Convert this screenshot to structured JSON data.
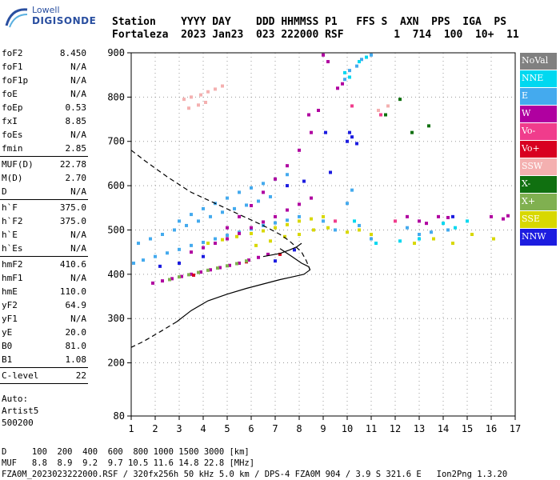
{
  "logo": {
    "top": "Lowell",
    "main": "DIGISONDE"
  },
  "header": {
    "line1": "Station    YYYY DAY    DDD HHMMSS P1   FFS S  AXN  PPS  IGA  PS",
    "line2": "Fortaleza  2023 Jan23  023 222000 RSF        1  714  100  10+  11"
  },
  "params": {
    "group1": [
      {
        "label": "foF2",
        "value": "8.450"
      },
      {
        "label": "foF1",
        "value": "N/A"
      },
      {
        "label": "foF1p",
        "value": "N/A"
      },
      {
        "label": "foE",
        "value": "N/A"
      },
      {
        "label": "foEp",
        "value": "0.53"
      },
      {
        "label": "fxI",
        "value": "8.85"
      },
      {
        "label": "foEs",
        "value": "N/A"
      },
      {
        "label": "fmin",
        "value": "2.85"
      }
    ],
    "group2": [
      {
        "label": "MUF(D)",
        "value": "22.78"
      },
      {
        "label": "M(D)",
        "value": "2.70"
      },
      {
        "label": "D",
        "value": "N/A"
      }
    ],
    "group3": [
      {
        "label": "h`F",
        "value": "375.0"
      },
      {
        "label": "h`F2",
        "value": "375.0"
      },
      {
        "label": "h`E",
        "value": "N/A"
      },
      {
        "label": "h`Es",
        "value": "N/A"
      }
    ],
    "group4": [
      {
        "label": "hmF2",
        "value": "410.6"
      },
      {
        "label": "hmF1",
        "value": "N/A"
      },
      {
        "label": "hmE",
        "value": "110.0"
      },
      {
        "label": "yF2",
        "value": "64.9"
      },
      {
        "label": "yF1",
        "value": "N/A"
      },
      {
        "label": "yE",
        "value": "20.0"
      },
      {
        "label": "B0",
        "value": "81.0"
      },
      {
        "label": "B1",
        "value": "1.08"
      }
    ],
    "group5": [
      {
        "label": "C-level",
        "value": "22"
      }
    ],
    "auto": [
      "Auto:",
      "Artist5",
      "500200"
    ]
  },
  "legend": [
    {
      "label": "NoVal",
      "color": "#808080"
    },
    {
      "label": "NNE",
      "color": "#00d8f0"
    },
    {
      "label": "E",
      "color": "#44aaee"
    },
    {
      "label": "W",
      "color": "#b000a0"
    },
    {
      "label": "Vo-",
      "color": "#f03c8c"
    },
    {
      "label": "Vo+",
      "color": "#d80020"
    },
    {
      "label": "SSW",
      "color": "#f4b0b0"
    },
    {
      "label": "X-",
      "color": "#107010"
    },
    {
      "label": "X+",
      "color": "#80b050"
    },
    {
      "label": "SSE",
      "color": "#d8d800"
    },
    {
      "label": "NNW",
      "color": "#1c1ce0"
    }
  ],
  "chart_data": {
    "type": "scatter",
    "xlim": [
      1,
      17
    ],
    "ylim": [
      80,
      900
    ],
    "xticks": [
      1,
      2,
      3,
      4,
      5,
      6,
      7,
      8,
      9,
      10,
      11,
      12,
      13,
      14,
      15,
      16,
      17
    ],
    "yticks": [
      80,
      200,
      300,
      400,
      500,
      600,
      700,
      800,
      900
    ],
    "grid": "dotted",
    "series": [
      {
        "name": "E",
        "color": "#44aaee",
        "points": [
          [
            1.1,
            425
          ],
          [
            1.5,
            432
          ],
          [
            2,
            440
          ],
          [
            2.5,
            448
          ],
          [
            3,
            456
          ],
          [
            3.5,
            465
          ],
          [
            4,
            472
          ],
          [
            4.5,
            480
          ],
          [
            5,
            488
          ],
          [
            5.5,
            495
          ],
          [
            6,
            502
          ],
          [
            6.5,
            510
          ],
          [
            7,
            516
          ],
          [
            7.5,
            522
          ],
          [
            8,
            530
          ],
          [
            1.3,
            470
          ],
          [
            1.8,
            480
          ],
          [
            2.3,
            490
          ],
          [
            2.8,
            500
          ],
          [
            3.3,
            510
          ],
          [
            3.8,
            520
          ],
          [
            4.3,
            530
          ],
          [
            4.8,
            540
          ],
          [
            5.3,
            548
          ],
          [
            5.8,
            556
          ],
          [
            6.3,
            565
          ],
          [
            6.8,
            575
          ],
          [
            3,
            520
          ],
          [
            3.5,
            535
          ],
          [
            4,
            548
          ],
          [
            4.5,
            560
          ],
          [
            5,
            572
          ],
          [
            5.5,
            585
          ],
          [
            6,
            595
          ],
          [
            6.5,
            605
          ],
          [
            7,
            615
          ],
          [
            7.5,
            625
          ],
          [
            9,
            520
          ],
          [
            9.5,
            500
          ],
          [
            10,
            560
          ],
          [
            10.2,
            590
          ],
          [
            10.5,
            510
          ],
          [
            11,
            480
          ],
          [
            12.5,
            505
          ],
          [
            13,
            490
          ],
          [
            13.5,
            495
          ],
          [
            14.2,
            500
          ],
          [
            10.1,
            860
          ],
          [
            10.4,
            870
          ],
          [
            10.6,
            885
          ],
          [
            11,
            895
          ],
          [
            9.9,
            840
          ]
        ]
      },
      {
        "name": "NNE",
        "color": "#00d8f0",
        "points": [
          [
            9.9,
            855
          ],
          [
            10.1,
            845
          ],
          [
            10.5,
            880
          ],
          [
            10.8,
            890
          ],
          [
            10.3,
            520
          ],
          [
            11.2,
            470
          ],
          [
            12.2,
            475
          ],
          [
            13,
            480
          ],
          [
            14,
            515
          ],
          [
            14.5,
            505
          ],
          [
            15,
            520
          ]
        ]
      },
      {
        "name": "W",
        "color": "#b000a0",
        "points": [
          [
            1.9,
            380
          ],
          [
            2.3,
            385
          ],
          [
            2.7,
            390
          ],
          [
            3.1,
            395
          ],
          [
            3.5,
            400
          ],
          [
            3.9,
            405
          ],
          [
            4.3,
            410
          ],
          [
            4.7,
            415
          ],
          [
            5.1,
            420
          ],
          [
            5.5,
            425
          ],
          [
            5.9,
            432
          ],
          [
            6.3,
            438
          ],
          [
            6.7,
            445
          ],
          [
            3.5,
            450
          ],
          [
            4,
            460
          ],
          [
            4.5,
            470
          ],
          [
            5,
            480
          ],
          [
            5.5,
            492
          ],
          [
            6,
            505
          ],
          [
            6.5,
            518
          ],
          [
            7,
            530
          ],
          [
            7.5,
            545
          ],
          [
            8,
            558
          ],
          [
            8.5,
            572
          ],
          [
            5,
            505
          ],
          [
            5.5,
            530
          ],
          [
            6,
            555
          ],
          [
            6.5,
            585
          ],
          [
            7,
            615
          ],
          [
            7.5,
            645
          ],
          [
            8,
            680
          ],
          [
            8.5,
            720
          ],
          [
            8.8,
            770
          ],
          [
            8.4,
            760
          ],
          [
            9,
            895
          ],
          [
            9.2,
            880
          ],
          [
            9.6,
            820
          ],
          [
            9.8,
            830
          ],
          [
            12.5,
            530
          ],
          [
            13,
            520
          ],
          [
            13.3,
            515
          ],
          [
            13.8,
            530
          ],
          [
            14.2,
            528
          ],
          [
            16,
            530
          ],
          [
            16.5,
            525
          ],
          [
            16.7,
            532
          ]
        ]
      },
      {
        "name": "Vo-",
        "color": "#f03c8c",
        "points": [
          [
            10.2,
            780
          ],
          [
            11.4,
            760
          ],
          [
            12,
            520
          ],
          [
            9.5,
            520
          ]
        ]
      },
      {
        "name": "Vo+",
        "color": "#d80020",
        "points": [
          [
            3.6,
            398
          ],
          [
            5.8,
            428
          ],
          [
            7.2,
            445
          ]
        ]
      },
      {
        "name": "SSW",
        "color": "#f4b0b0",
        "points": [
          [
            3.2,
            795
          ],
          [
            3.5,
            800
          ],
          [
            3.9,
            805
          ],
          [
            4.2,
            812
          ],
          [
            4.5,
            818
          ],
          [
            4.8,
            825
          ],
          [
            3.4,
            775
          ],
          [
            3.8,
            782
          ],
          [
            4.1,
            788
          ],
          [
            11.3,
            770
          ],
          [
            11.7,
            780
          ]
        ]
      },
      {
        "name": "X-",
        "color": "#107010",
        "points": [
          [
            12.2,
            795
          ],
          [
            12.7,
            720
          ],
          [
            11.6,
            760
          ],
          [
            13.4,
            735
          ]
        ]
      },
      {
        "name": "X+",
        "color": "#80b050",
        "points": [
          [
            2.6,
            388
          ],
          [
            3,
            394
          ],
          [
            3.4,
            399
          ],
          [
            3.8,
            404
          ],
          [
            4.2,
            409
          ],
          [
            4.6,
            414
          ],
          [
            5,
            419
          ],
          [
            5.4,
            424
          ],
          [
            5.8,
            430
          ]
        ]
      },
      {
        "name": "SSE",
        "color": "#d8d800",
        "points": [
          [
            4.2,
            470
          ],
          [
            4.8,
            478
          ],
          [
            5.4,
            485
          ],
          [
            6,
            492
          ],
          [
            6.5,
            498
          ],
          [
            7,
            505
          ],
          [
            7.5,
            512
          ],
          [
            8,
            520
          ],
          [
            8.5,
            525
          ],
          [
            9,
            530
          ],
          [
            6.2,
            465
          ],
          [
            6.8,
            475
          ],
          [
            7.4,
            485
          ],
          [
            8,
            490
          ],
          [
            8.6,
            500
          ],
          [
            9.2,
            505
          ],
          [
            10,
            495
          ],
          [
            10.5,
            500
          ],
          [
            11,
            490
          ],
          [
            12.8,
            470
          ],
          [
            13.6,
            480
          ],
          [
            14.4,
            470
          ],
          [
            15.2,
            490
          ],
          [
            16.1,
            480
          ]
        ]
      },
      {
        "name": "NNW",
        "color": "#1c1ce0",
        "points": [
          [
            2.2,
            418
          ],
          [
            3,
            425
          ],
          [
            4,
            440
          ],
          [
            7.5,
            600
          ],
          [
            8.2,
            610
          ],
          [
            9.3,
            630
          ],
          [
            10,
            700
          ],
          [
            10.2,
            710
          ],
          [
            10.4,
            695
          ],
          [
            10.1,
            720
          ],
          [
            9.1,
            720
          ],
          [
            14.4,
            530
          ],
          [
            7,
            430
          ],
          [
            7.8,
            455
          ]
        ]
      }
    ],
    "profile_solid": [
      [
        2.9,
        293
      ],
      [
        3.5,
        318
      ],
      [
        4.2,
        340
      ],
      [
        5,
        355
      ],
      [
        5.8,
        368
      ],
      [
        6.5,
        378
      ],
      [
        7.2,
        388
      ],
      [
        7.8,
        395
      ],
      [
        8.2,
        400
      ],
      [
        8.45,
        410
      ],
      [
        8.4,
        417
      ],
      [
        8.1,
        425
      ],
      [
        7.7,
        440
      ],
      [
        7.2,
        458
      ]
    ],
    "profile_dashed_top": [
      [
        1,
        680
      ],
      [
        1.6,
        655
      ],
      [
        2.5,
        620
      ],
      [
        3.5,
        585
      ],
      [
        4.5,
        560
      ],
      [
        5.5,
        535
      ],
      [
        6.5,
        510
      ],
      [
        7.2,
        490
      ],
      [
        7.6,
        475
      ],
      [
        7.9,
        460
      ],
      [
        8.1,
        450
      ],
      [
        8.3,
        430
      ],
      [
        8.45,
        410
      ]
    ],
    "profile_dashed_bottom": [
      [
        2.9,
        293
      ],
      [
        2.2,
        270
      ],
      [
        1.5,
        248
      ],
      [
        1,
        235
      ]
    ],
    "trace_black": [
      [
        6.5,
        440
      ],
      [
        7.2,
        447
      ],
      [
        7.6,
        455
      ],
      [
        7.9,
        462
      ],
      [
        8.1,
        470
      ]
    ]
  },
  "footer": {
    "line1": "D     100  200  400  600  800 1000 1500 3000 [km]",
    "line2": "MUF   8.8  8.9  9.2  9.7 10.5 11.6 14.8 22.8 [MHz]",
    "line3": "FZA0M_2023023222000.RSF / 320fx256h 50 kHz 5.0 km / DPS-4 FZA0M 904 / 3.9 S 321.6 E   Ion2Png 1.3.20"
  }
}
